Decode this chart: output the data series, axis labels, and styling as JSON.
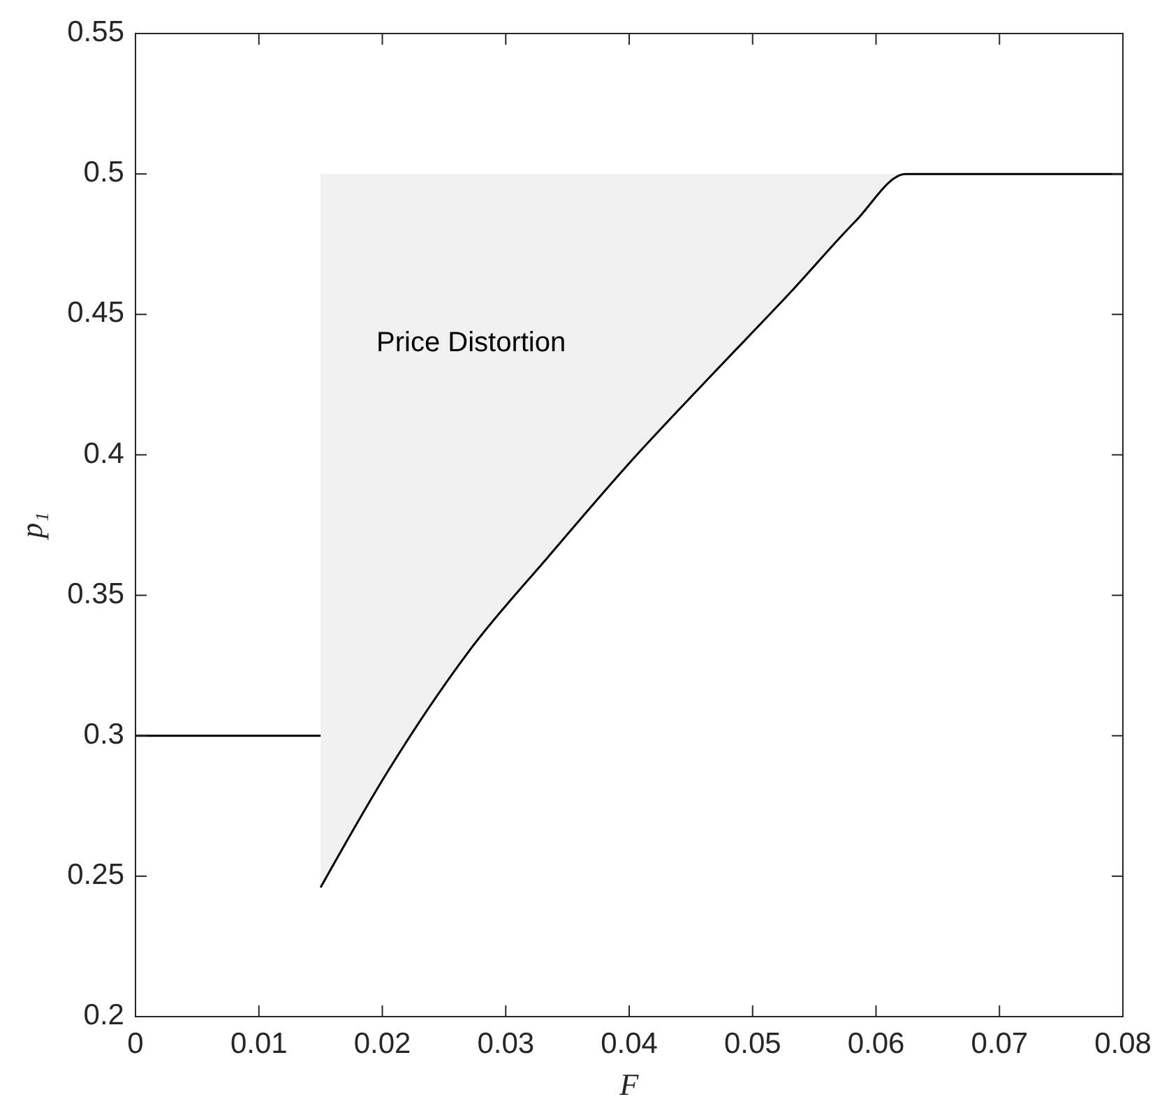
{
  "chart_data": {
    "type": "line",
    "xlabel": "F",
    "ylabel": "p₁",
    "xlim": [
      0,
      0.08
    ],
    "ylim": [
      0.2,
      0.55
    ],
    "xticks": [
      0,
      0.01,
      0.02,
      0.03,
      0.04,
      0.05,
      0.06,
      0.07,
      0.08
    ],
    "yticks": [
      0.2,
      0.25,
      0.3,
      0.35,
      0.4,
      0.45,
      0.5,
      0.55
    ],
    "series": [
      {
        "color": "#000000",
        "x": [
          0,
          0.015
        ],
        "values": [
          0.3,
          0.3
        ]
      },
      {
        "color": "#000000",
        "x": [
          0.015,
          0.0204,
          0.027,
          0.0335,
          0.04,
          0.0466,
          0.0531,
          0.0583,
          0.0624,
          0.08
        ],
        "values": [
          0.246,
          0.287,
          0.33,
          0.364,
          0.397,
          0.428,
          0.458,
          0.483,
          0.5,
          0.5
        ],
        "lower": [
          0.246,
          0.287,
          0.33,
          0.364,
          0.397,
          0.428,
          0.458,
          0.483,
          0.5,
          0.5
        ],
        "upper": [
          0.5,
          0.5,
          0.5,
          0.5,
          0.5,
          0.5,
          0.5,
          0.5,
          0.5,
          0.5
        ]
      }
    ],
    "annotations": [
      "Price Distortion"
    ]
  }
}
